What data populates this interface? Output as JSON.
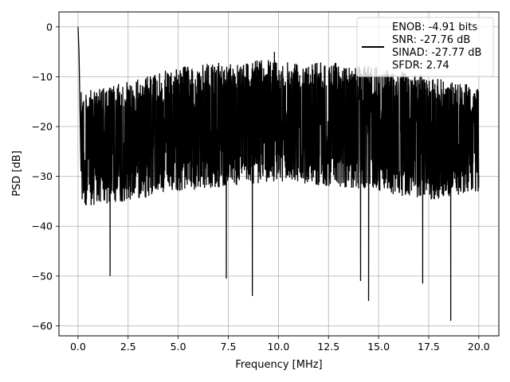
{
  "chart_data": {
    "type": "line",
    "title": "",
    "xlabel": "Frequency [MHz]",
    "ylabel": "PSD [dB]",
    "xlim": [
      -0.95,
      21.0
    ],
    "ylim": [
      -62.0,
      3.0
    ],
    "xticks": [
      0.0,
      2.5,
      5.0,
      7.5,
      10.0,
      12.5,
      15.0,
      17.5,
      20.0
    ],
    "xtick_labels": [
      "0.0",
      "2.5",
      "5.0",
      "7.5",
      "10.0",
      "12.5",
      "15.0",
      "17.5",
      "20.0"
    ],
    "yticks": [
      0,
      -10,
      -20,
      -30,
      -40,
      -50,
      -60
    ],
    "ytick_labels": [
      "0",
      "−10",
      "−20",
      "−30",
      "−40",
      "−50",
      "−60"
    ],
    "grid": true,
    "legend_placement": "top-right",
    "line_color": "#000000",
    "series": [
      {
        "legend_lines": [
          "ENOB: -4.91 bits",
          "SNR: -27.76 dB",
          "SINAD: -27.77 dB",
          "SFDR: 2.74"
        ],
        "x_range": [
          0.0,
          20.0
        ],
        "notable_points": [
          {
            "x": 0.0,
            "y": 0.0
          },
          {
            "x": 0.05,
            "y": -5.0
          },
          {
            "x": 1.6,
            "y": -50.0
          },
          {
            "x": 7.4,
            "y": -50.5
          },
          {
            "x": 8.7,
            "y": -54.0
          },
          {
            "x": 9.8,
            "y": -5.0
          },
          {
            "x": 14.1,
            "y": -51.0
          },
          {
            "x": 14.5,
            "y": -55.0
          },
          {
            "x": 17.2,
            "y": -51.5
          },
          {
            "x": 18.6,
            "y": -59.0
          }
        ],
        "upper_envelope": [
          {
            "x": 0.2,
            "y": -13.0
          },
          {
            "x": 2.5,
            "y": -11.0
          },
          {
            "x": 5.0,
            "y": -8.0
          },
          {
            "x": 7.5,
            "y": -7.0
          },
          {
            "x": 10.0,
            "y": -6.5
          },
          {
            "x": 12.5,
            "y": -7.0
          },
          {
            "x": 15.0,
            "y": -8.0
          },
          {
            "x": 17.5,
            "y": -10.0
          },
          {
            "x": 20.0,
            "y": -12.0
          }
        ],
        "lower_envelope": [
          {
            "x": 0.2,
            "y": -36.0
          },
          {
            "x": 2.5,
            "y": -35.0
          },
          {
            "x": 5.0,
            "y": -33.0
          },
          {
            "x": 7.5,
            "y": -32.0
          },
          {
            "x": 10.0,
            "y": -31.0
          },
          {
            "x": 12.5,
            "y": -32.0
          },
          {
            "x": 15.0,
            "y": -33.0
          },
          {
            "x": 17.5,
            "y": -35.0
          },
          {
            "x": 20.0,
            "y": -33.0
          }
        ]
      }
    ]
  }
}
